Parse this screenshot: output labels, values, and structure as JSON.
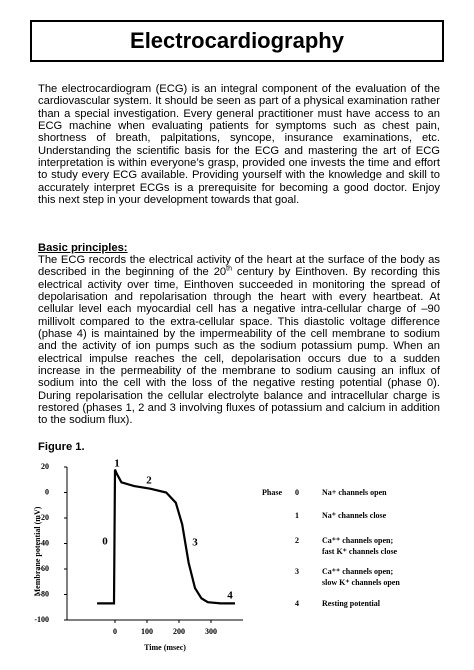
{
  "title": "Electrocardiography",
  "intro": "The electrocardiogram (ECG) is an integral component of the evaluation of the cardiovascular system.  It should be seen as part of a physical examination rather than a special investigation.  Every general practitioner must have access to an ECG machine when evaluating patients for symptoms such as chest pain, shortness of breath, palpitations, syncope, insurance examinations, etc.  Understanding the scientific basis for the ECG and mastering the art of ECG interpretation is within everyone’s grasp, provided one invests the time and effort to study every ECG available.  Providing yourself with the knowledge and skill to accurately interpret ECGs is a prerequisite for becoming a good doctor.  Enjoy this next step in your development towards that goal.",
  "section": {
    "heading": "Basic principles:",
    "paragraph": [
      "The ECG records the electrical activity of the heart at the surface of the body as described in the beginning of the 20",
      "th",
      " century by Einthoven.  By recording this electrical activity over time, Einthoven succeeded in monitoring the spread of depolarisation and repolarisation through the heart with every heartbeat.  At cellular level each myocardial cell has a negative intra-cellular charge of –90 millivolt compared to the extra-cellular space.  This diastolic voltage difference (phase 4) is maintained by the impermeability of the cell membrane to sodium and the activity of ion pumps such as the sodium potassium pump.  When an electrical impulse reaches the cell, depolarisation occurs due to a sudden increase in the permeability of the membrane to sodium causing an influx of sodium into the cell with the loss of the negative resting potential (phase 0).  During repolarisation the cellular electrolyte balance and intracellular charge is restored (phases 1, 2 and 3 involving fluxes of potassium and calcium in addition to the sodium flux)."
    ]
  },
  "figure_label": "Figure 1.",
  "chart_data": {
    "type": "line",
    "x_label": "Time (msec)",
    "y_label": "Membrane potential (mV)",
    "x": [
      -56,
      -3,
      0,
      5,
      20,
      60,
      110,
      160,
      190,
      210,
      230,
      250,
      270,
      290,
      330,
      375
    ],
    "values": [
      -87,
      -87,
      18,
      15,
      8,
      5,
      3,
      0,
      -8,
      -25,
      -55,
      -75,
      -83,
      -86,
      -87,
      -87
    ],
    "color": "#000000",
    "xlim": [
      -150,
      400
    ],
    "ylim": [
      -100,
      20
    ],
    "xticks": [
      0,
      100,
      200,
      300
    ],
    "yticks": [
      20,
      0,
      -20,
      -40,
      -60,
      -80,
      -100
    ],
    "annotations": [
      "1",
      "2",
      "0",
      "3",
      "4"
    ],
    "phase_table": {
      "header": "Phase",
      "rows": [
        {
          "phase": "0",
          "description": [
            "Na+ channels open"
          ]
        },
        {
          "phase": "1",
          "description": [
            "Na⁺ channels close"
          ]
        },
        {
          "phase": "2",
          "description": [
            "Ca⁺⁺ channels open;",
            "fast K⁺ channels close"
          ]
        },
        {
          "phase": "3",
          "description": [
            "Ca⁺⁺ channels open;",
            "slow K⁺ channels open"
          ]
        },
        {
          "phase": "4",
          "description": [
            "Resting potential"
          ]
        }
      ]
    }
  }
}
